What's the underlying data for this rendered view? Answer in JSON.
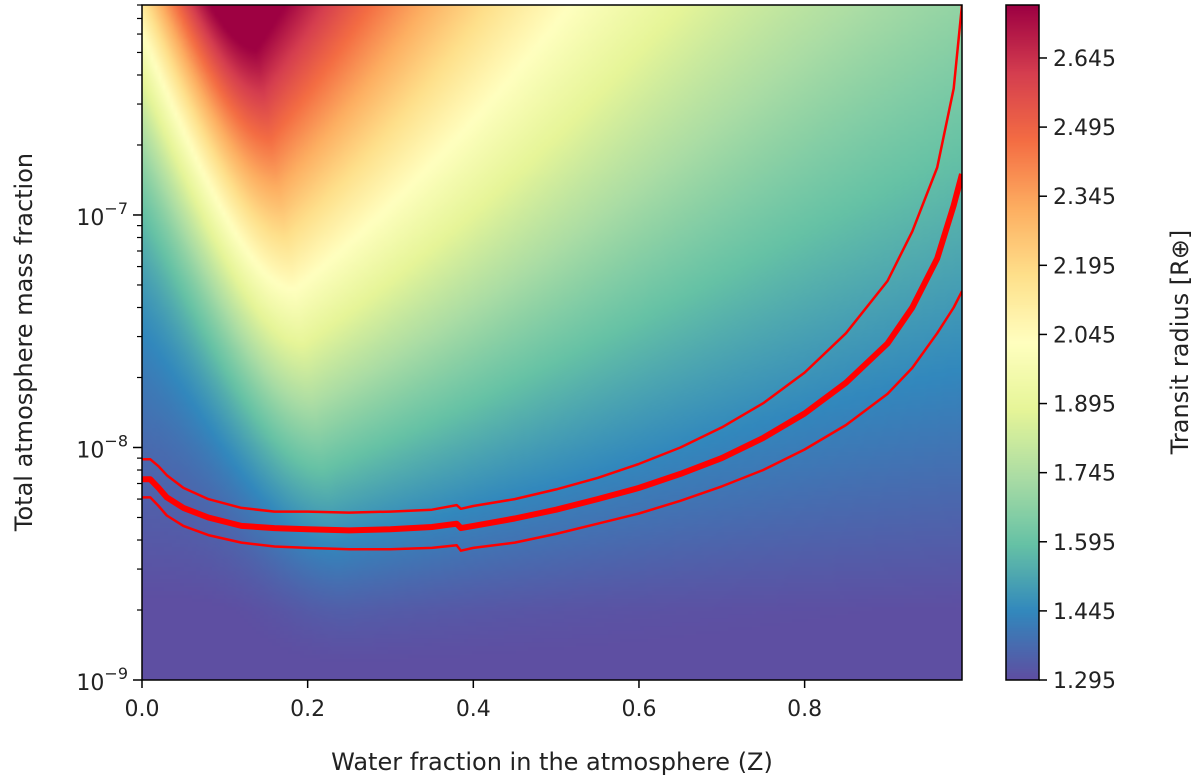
{
  "chart_data": {
    "type": "heatmap",
    "title": "",
    "xlabel": "Water fraction in the atmosphere (Z)",
    "ylabel": "Total atmosphere mass fraction",
    "xlim": [
      0.0,
      0.99
    ],
    "ylim": [
      1e-09,
      8e-07
    ],
    "yscale": "log",
    "x_ticks": [
      0.0,
      0.2,
      0.4,
      0.6,
      0.8
    ],
    "x_tick_labels": [
      "0.0",
      "0.2",
      "0.4",
      "0.6",
      "0.8"
    ],
    "y_ticks": [
      1e-09,
      1e-08,
      1e-07
    ],
    "y_tick_labels": [
      {
        "base": "10",
        "exp": "−9"
      },
      {
        "base": "10",
        "exp": "−8"
      },
      {
        "base": "10",
        "exp": "−7"
      }
    ],
    "colormap": "Spectral_r",
    "colorbar": {
      "label": "Transit radius [R⊕]",
      "min": 1.295,
      "max": 2.76,
      "ticks": [
        1.295,
        1.445,
        1.595,
        1.745,
        1.895,
        2.045,
        2.195,
        2.345,
        2.495,
        2.645
      ],
      "tick_labels": [
        "1.295",
        "1.445",
        "1.595",
        "1.745",
        "1.895",
        "2.045",
        "2.195",
        "2.345",
        "2.495",
        "2.645"
      ]
    },
    "grid": false,
    "contours": [
      {
        "role": "upper",
        "color": "#ff0000",
        "points": [
          [
            0.0,
            8.9e-09
          ],
          [
            0.01,
            8.9e-09
          ],
          [
            0.02,
            8.3e-09
          ],
          [
            0.03,
            7.6e-09
          ],
          [
            0.05,
            6.7e-09
          ],
          [
            0.08,
            6e-09
          ],
          [
            0.12,
            5.5e-09
          ],
          [
            0.16,
            5.3e-09
          ],
          [
            0.2,
            5.3e-09
          ],
          [
            0.25,
            5.25e-09
          ],
          [
            0.3,
            5.3e-09
          ],
          [
            0.35,
            5.4e-09
          ],
          [
            0.38,
            5.65e-09
          ],
          [
            0.385,
            5.45e-09
          ],
          [
            0.4,
            5.6e-09
          ],
          [
            0.45,
            6e-09
          ],
          [
            0.5,
            6.6e-09
          ],
          [
            0.55,
            7.4e-09
          ],
          [
            0.6,
            8.5e-09
          ],
          [
            0.65,
            1e-08
          ],
          [
            0.7,
            1.22e-08
          ],
          [
            0.75,
            1.55e-08
          ],
          [
            0.8,
            2.1e-08
          ],
          [
            0.85,
            3.1e-08
          ],
          [
            0.9,
            5.2e-08
          ],
          [
            0.93,
            8.5e-08
          ],
          [
            0.96,
            1.6e-07
          ],
          [
            0.98,
            3.5e-07
          ],
          [
            0.99,
            8e-07
          ]
        ]
      },
      {
        "role": "central",
        "color": "#ff0000",
        "points": [
          [
            0.0,
            7.3e-09
          ],
          [
            0.01,
            7.3e-09
          ],
          [
            0.02,
            6.7e-09
          ],
          [
            0.03,
            6.1e-09
          ],
          [
            0.05,
            5.5e-09
          ],
          [
            0.08,
            5e-09
          ],
          [
            0.12,
            4.6e-09
          ],
          [
            0.16,
            4.5e-09
          ],
          [
            0.2,
            4.45e-09
          ],
          [
            0.25,
            4.4e-09
          ],
          [
            0.3,
            4.45e-09
          ],
          [
            0.35,
            4.55e-09
          ],
          [
            0.38,
            4.7e-09
          ],
          [
            0.385,
            4.5e-09
          ],
          [
            0.4,
            4.6e-09
          ],
          [
            0.45,
            4.95e-09
          ],
          [
            0.5,
            5.4e-09
          ],
          [
            0.55,
            6e-09
          ],
          [
            0.6,
            6.7e-09
          ],
          [
            0.65,
            7.7e-09
          ],
          [
            0.7,
            9e-09
          ],
          [
            0.75,
            1.1e-08
          ],
          [
            0.8,
            1.4e-08
          ],
          [
            0.85,
            1.9e-08
          ],
          [
            0.9,
            2.8e-08
          ],
          [
            0.93,
            4e-08
          ],
          [
            0.96,
            6.5e-08
          ],
          [
            0.98,
            1.1e-07
          ],
          [
            0.99,
            1.5e-07
          ]
        ]
      },
      {
        "role": "lower",
        "color": "#ff0000",
        "points": [
          [
            0.0,
            6.1e-09
          ],
          [
            0.01,
            6.1e-09
          ],
          [
            0.02,
            5.6e-09
          ],
          [
            0.03,
            5.1e-09
          ],
          [
            0.05,
            4.6e-09
          ],
          [
            0.08,
            4.2e-09
          ],
          [
            0.12,
            3.9e-09
          ],
          [
            0.16,
            3.75e-09
          ],
          [
            0.2,
            3.7e-09
          ],
          [
            0.25,
            3.65e-09
          ],
          [
            0.3,
            3.65e-09
          ],
          [
            0.35,
            3.7e-09
          ],
          [
            0.38,
            3.8e-09
          ],
          [
            0.385,
            3.6e-09
          ],
          [
            0.4,
            3.7e-09
          ],
          [
            0.45,
            3.9e-09
          ],
          [
            0.5,
            4.25e-09
          ],
          [
            0.55,
            4.7e-09
          ],
          [
            0.6,
            5.2e-09
          ],
          [
            0.65,
            5.9e-09
          ],
          [
            0.7,
            6.8e-09
          ],
          [
            0.75,
            8e-09
          ],
          [
            0.8,
            9.8e-09
          ],
          [
            0.85,
            1.25e-08
          ],
          [
            0.9,
            1.7e-08
          ],
          [
            0.93,
            2.2e-08
          ],
          [
            0.96,
            3.1e-08
          ],
          [
            0.98,
            4e-08
          ],
          [
            0.99,
            4.7e-08
          ]
        ]
      }
    ]
  }
}
